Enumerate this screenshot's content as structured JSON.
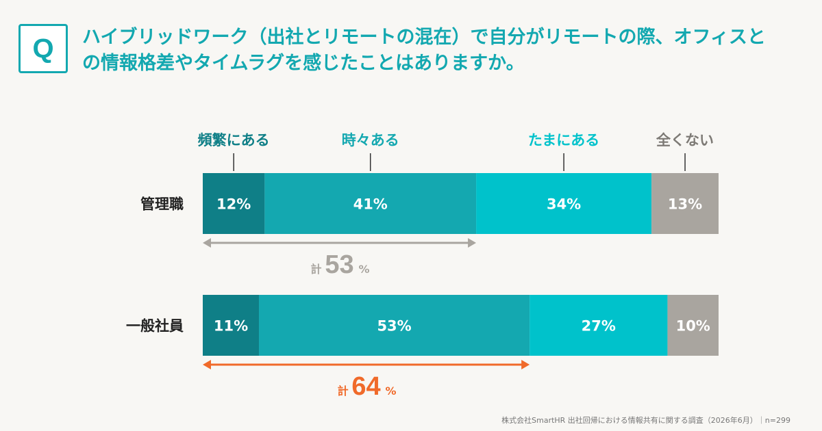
{
  "question": {
    "badge": "Q",
    "line1": "ハイブリッドワーク（出社とリモートの混在）で自分がリモートの際、オフィスと",
    "line2": "の情報格差やタイムラグを感じたことはありますか。"
  },
  "chart_data": {
    "type": "bar",
    "orientation": "horizontal",
    "stacked": true,
    "categories": [
      "管理職",
      "一般社員"
    ],
    "series": [
      {
        "name": "頻繁にある",
        "values": [
          12,
          11
        ],
        "color": "#0f7f87"
      },
      {
        "name": "時々ある",
        "values": [
          41,
          53
        ],
        "color": "#14a8b0"
      },
      {
        "name": "たまにある",
        "values": [
          34,
          27
        ],
        "color": "#00c2cb"
      },
      {
        "name": "全くない",
        "values": [
          13,
          10
        ],
        "color": "#a9a59f"
      }
    ],
    "value_suffix": "%",
    "totals": [
      {
        "prefix": "計",
        "value": "53",
        "suffix": "%",
        "color": "#a9a59f"
      },
      {
        "prefix": "計",
        "value": "64",
        "suffix": "%",
        "color": "#f06a2a"
      }
    ],
    "legend_placement": "top",
    "grid": false
  },
  "source": "株式会社SmartHR 出社回帰における情報共有に関する調査（2026年6月）｜n=299"
}
